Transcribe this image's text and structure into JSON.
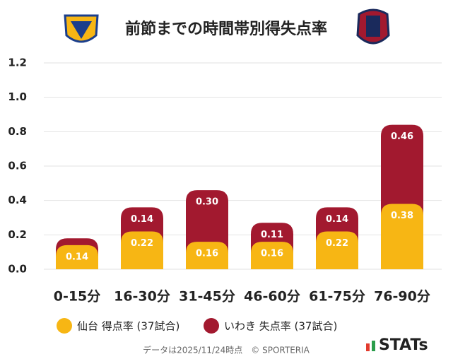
{
  "chart_data": {
    "type": "bar",
    "stacked": true,
    "title": "前節までの時間帯別得失点率",
    "categories": [
      "0-15分",
      "16-30分",
      "31-45分",
      "46-60分",
      "61-75分",
      "76-90分"
    ],
    "series": [
      {
        "name": "仙台 得点率 (37試合)",
        "color": "#f7b614",
        "values": [
          0.14,
          0.22,
          0.16,
          0.16,
          0.22,
          0.38
        ],
        "value_labels": [
          "0.14",
          "0.22",
          "0.16",
          "0.16",
          "0.22",
          "0.38"
        ]
      },
      {
        "name": "いわき 失点率 (37試合)",
        "color": "#a2192f",
        "values": [
          0.04,
          0.14,
          0.3,
          0.11,
          0.14,
          0.46
        ],
        "value_labels": [
          null,
          "0.14",
          "0.30",
          "0.11",
          "0.14",
          "0.46"
        ]
      }
    ],
    "ylim": [
      0,
      1.2
    ],
    "yticks": [
      {
        "value": 0,
        "label": "0.0"
      },
      0.2,
      0.4,
      0.6,
      0.8,
      {
        "value": 1,
        "label": "1.0"
      },
      1.2
    ],
    "grid": true,
    "footnote": "データは2025/11/24時点　© SPORTERIA",
    "brand": "STATs"
  }
}
